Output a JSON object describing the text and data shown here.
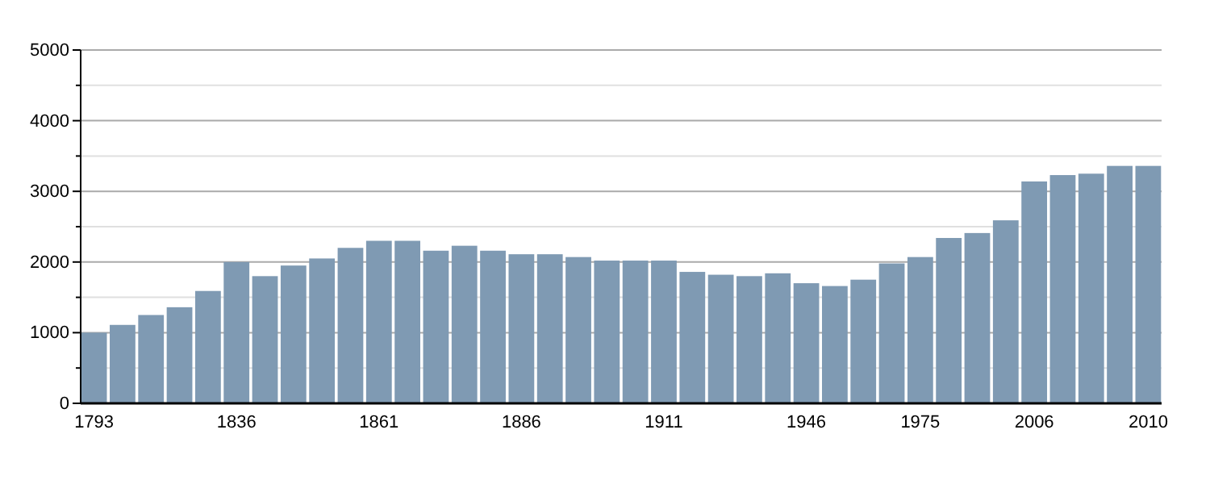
{
  "chart_data": {
    "type": "bar",
    "categories": [
      "1793",
      null,
      null,
      null,
      null,
      "1836",
      null,
      null,
      null,
      null,
      "1861",
      null,
      null,
      null,
      null,
      "1886",
      null,
      null,
      null,
      null,
      "1911",
      null,
      null,
      null,
      null,
      "1946",
      null,
      null,
      null,
      "1975",
      null,
      null,
      null,
      "2006",
      null,
      null,
      null,
      "2010"
    ],
    "values": [
      1000,
      1110,
      1250,
      1360,
      1590,
      2000,
      1800,
      1950,
      2050,
      2200,
      2300,
      2300,
      2160,
      2230,
      2160,
      2110,
      2110,
      2070,
      2020,
      2020,
      2020,
      1860,
      1820,
      1800,
      1840,
      1700,
      1660,
      1750,
      1980,
      2070,
      2340,
      2410,
      2590,
      3140,
      3230,
      3250,
      3360,
      3360
    ],
    "color": "#7f9ab3",
    "ylim": [
      0,
      5000
    ],
    "yticks": [
      0,
      {
        "value": 500,
        "label": null
      },
      1000,
      {
        "value": 1500,
        "label": null
      },
      2000,
      {
        "value": 2500,
        "label": null
      },
      3000,
      {
        "value": 3500,
        "label": null
      },
      4000,
      {
        "value": 4500,
        "label": null
      },
      5000
    ],
    "grid": true
  }
}
